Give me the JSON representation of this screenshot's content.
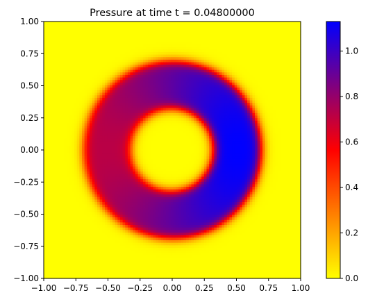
{
  "chart_data": {
    "type": "heatmap",
    "title": "Pressure at time t =     0.04800000",
    "xlabel": "",
    "ylabel": "",
    "xlim": [
      -1.0,
      1.0
    ],
    "ylim": [
      -1.0,
      1.0
    ],
    "x_ticks": [
      "−1.00",
      "−0.75",
      "−0.50",
      "−0.25",
      "0.00",
      "0.25",
      "0.50",
      "0.75",
      "1.00"
    ],
    "x_tick_values": [
      -1.0,
      -0.75,
      -0.5,
      -0.25,
      0.0,
      0.25,
      0.5,
      0.75,
      1.0
    ],
    "y_ticks": [
      "−1.00",
      "−0.75",
      "−0.50",
      "−0.25",
      "0.00",
      "0.25",
      "0.50",
      "0.75",
      "1.00"
    ],
    "y_tick_values": [
      -1.0,
      -0.75,
      -0.5,
      -0.25,
      0.0,
      0.25,
      0.5,
      0.75,
      1.0
    ],
    "colorbar": {
      "range": [
        0.0,
        1.13
      ],
      "ticks": [
        "0.0",
        "0.2",
        "0.4",
        "0.6",
        "0.8",
        "1.0"
      ],
      "tick_values": [
        0.0,
        0.2,
        0.4,
        0.6,
        0.8,
        1.0
      ],
      "colormap": [
        {
          "value": 0.0,
          "color": "#ffff00"
        },
        {
          "value": 0.5,
          "color": "#ff0000"
        },
        {
          "value": 1.0,
          "color": "#0000ff"
        }
      ]
    },
    "field": {
      "grid_size": 101,
      "description_shape": "annulus",
      "center": [
        0.0,
        0.0
      ],
      "inner_radius": 0.32,
      "outer_radius": 0.69,
      "ring_peak": 1.13,
      "ring_peak_angle_deg": 0,
      "ring_min": 0.72
    }
  }
}
